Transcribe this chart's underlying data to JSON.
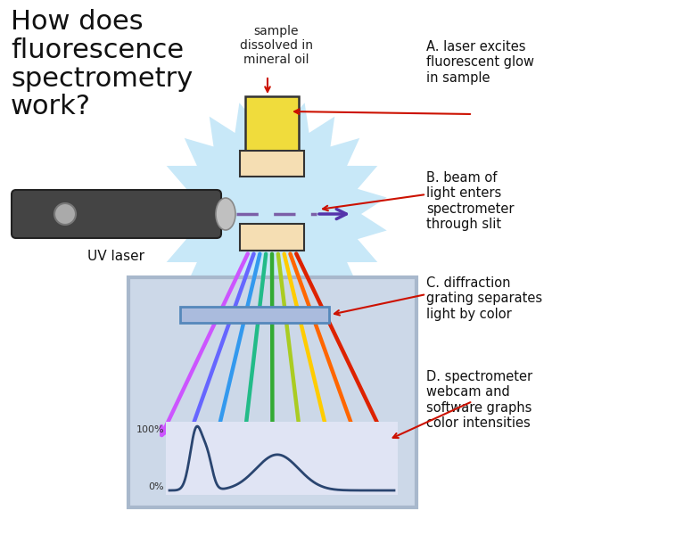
{
  "bg_color": "#ffffff",
  "laser_color": "#444444",
  "laser_tip_color": "#cccccc",
  "laser_beam_color": "#7b5ea7",
  "starburst_color": "#c8e8f8",
  "sample_top_color": "#f0dc3c",
  "sample_body_color": "#f5deb3",
  "spectrometer_bg": "#ccd8e8",
  "spectrometer_border": "#a8b8cc",
  "grating_face": "#aabbdd",
  "grating_edge": "#5588bb",
  "graph_bg": "#e0e4f4",
  "graph_line_color": "#2a4570",
  "annotation_color": "#cc1100",
  "beam_arrow_color": "#5533aa",
  "rainbow_colors": [
    "#cc55ff",
    "#6666ff",
    "#3399ee",
    "#22bb88",
    "#33aa33",
    "#aacc22",
    "#ffcc00",
    "#ff6600",
    "#dd2200"
  ],
  "label_A": "A. laser excites\nfluorescent glow\nin sample",
  "label_B": "B. beam of\nlight enters\nspectrometer\nthrough slit",
  "label_C": "C. diffraction\ngrating separates\nlight by color",
  "label_D": "D. spectrometer\nwebcam and\nsoftware graphs\ncolor intensities",
  "label_sample": "sample\ndissolved in\nmineral oil",
  "label_laser": "UV laser",
  "pct_100": "100%",
  "pct_0": "0%",
  "title_line1": "How does",
  "title_line2": "fluorescence",
  "title_line3": "spectrometry",
  "title_line4": "work?"
}
